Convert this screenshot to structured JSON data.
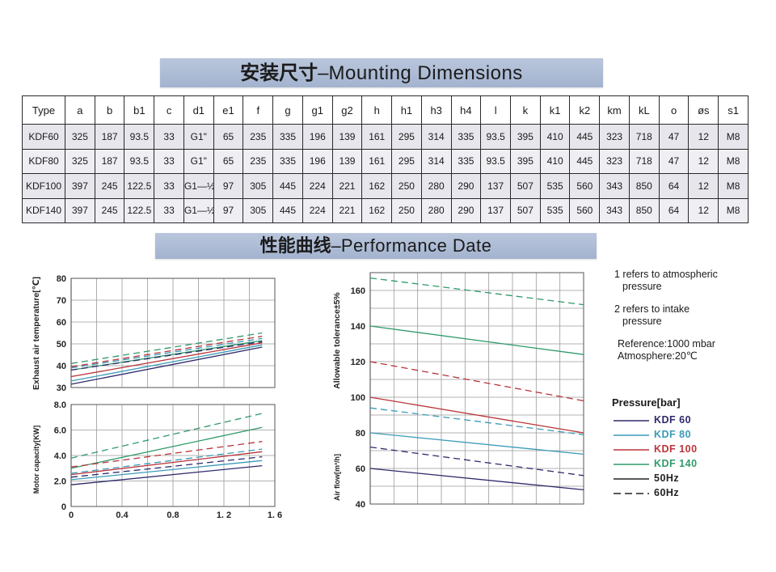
{
  "banners": {
    "mounting": {
      "zh": "安装尺寸",
      "sep": "–",
      "en": "Mounting Dimensions"
    },
    "performance": {
      "zh": "性能曲线",
      "sep": "–",
      "en": "Performance Date"
    }
  },
  "dimensions_table": {
    "headers": [
      "Type",
      "a",
      "b",
      "b1",
      "c",
      "d1",
      "e1",
      "f",
      "g",
      "g1",
      "g2",
      "h",
      "h1",
      "h3",
      "h4",
      "l",
      "k",
      "k1",
      "k2",
      "km",
      "kL",
      "o",
      "øs",
      "s1"
    ],
    "rows": [
      [
        "KDF60",
        "325",
        "187",
        "93.5",
        "33",
        "G1\"",
        "65",
        "235",
        "335",
        "196",
        "139",
        "161",
        "295",
        "314",
        "335",
        "93.5",
        "395",
        "410",
        "445",
        "323",
        "718",
        "47",
        "12",
        "M8"
      ],
      [
        "KDF80",
        "325",
        "187",
        "93.5",
        "33",
        "G1\"",
        "65",
        "235",
        "335",
        "196",
        "139",
        "161",
        "295",
        "314",
        "335",
        "93.5",
        "395",
        "410",
        "445",
        "323",
        "718",
        "47",
        "12",
        "M8"
      ],
      [
        "KDF100",
        "397",
        "245",
        "122.5",
        "33",
        "G1—½\"",
        "97",
        "305",
        "445",
        "224",
        "221",
        "162",
        "250",
        "280",
        "290",
        "137",
        "507",
        "535",
        "560",
        "343",
        "850",
        "64",
        "12",
        "M8"
      ],
      [
        "KDF140",
        "397",
        "245",
        "122.5",
        "33",
        "G1—½\"",
        "97",
        "305",
        "445",
        "224",
        "221",
        "162",
        "250",
        "280",
        "290",
        "137",
        "507",
        "535",
        "560",
        "343",
        "850",
        "64",
        "12",
        "M8"
      ]
    ]
  },
  "notes": {
    "note1_a": "1 refers to atmospheric",
    "note1_b": "pressure",
    "note2_a": "2 refers to intake",
    "note2_b": "pressure",
    "reference": "Reference:1000 mbar",
    "atmosphere": "Atmosphere:20℃"
  },
  "legend": {
    "title": "Pressure[bar]",
    "items": [
      {
        "label": "KDF 60",
        "color": "#2e2a6b",
        "dash": "solid"
      },
      {
        "label": "KDF 80",
        "color": "#3a9ab8",
        "dash": "solid"
      },
      {
        "label": "KDF 100",
        "color": "#b8343a",
        "dash": "solid"
      },
      {
        "label": "KDF 140",
        "color": "#2f9a6a",
        "dash": "solid"
      },
      {
        "label": "50Hz",
        "color": "#222222",
        "dash": "solid"
      },
      {
        "label": "60Hz",
        "color": "#222222",
        "dash": "dashed"
      }
    ]
  },
  "chart_data": [
    {
      "type": "line",
      "ylabel": "Exhaust air temperature[℃]",
      "xlim": [
        0,
        1.6
      ],
      "ylim": [
        30,
        80
      ],
      "yticks": [
        30,
        40,
        50,
        60,
        70,
        80
      ],
      "grid": true,
      "series": [
        {
          "name": "KDF 60",
          "frequency": "50Hz",
          "x": [
            0,
            1.5
          ],
          "y": [
            31.5,
            48.5
          ]
        },
        {
          "name": "KDF 80",
          "frequency": "50Hz",
          "x": [
            0,
            1.5
          ],
          "y": [
            33,
            49.5
          ]
        },
        {
          "name": "KDF 100",
          "frequency": "50Hz",
          "x": [
            0,
            1.5
          ],
          "y": [
            35,
            50.5
          ]
        },
        {
          "name": "KDF 140",
          "frequency": "50Hz",
          "x": [
            0,
            1.5
          ],
          "y": [
            38,
            51.5
          ]
        },
        {
          "name": "KDF 60",
          "frequency": "60Hz",
          "x": [
            0,
            1.5
          ],
          "y": [
            38,
            51
          ]
        },
        {
          "name": "KDF 80",
          "frequency": "60Hz",
          "x": [
            0,
            1.5
          ],
          "y": [
            39,
            52.5
          ]
        },
        {
          "name": "KDF 100",
          "frequency": "60Hz",
          "x": [
            0,
            1.5
          ],
          "y": [
            39.5,
            53.5
          ]
        },
        {
          "name": "KDF 140",
          "frequency": "60Hz",
          "x": [
            0,
            1.5
          ],
          "y": [
            41,
            55
          ]
        }
      ]
    },
    {
      "type": "line",
      "xlabel": "",
      "ylabel": "Motor capacity[KW]",
      "xlim": [
        0,
        1.6
      ],
      "ylim": [
        0,
        8
      ],
      "xticks": [
        "0",
        "0.4",
        "0.8",
        "1. 2",
        "1. 6"
      ],
      "yticks": [
        "0",
        "2.0",
        "4.0",
        "6.0",
        "8.0"
      ],
      "grid": true,
      "series": [
        {
          "name": "KDF 60",
          "frequency": "50Hz",
          "x": [
            0,
            1.5
          ],
          "y": [
            1.7,
            3.2
          ]
        },
        {
          "name": "KDF 80",
          "frequency": "50Hz",
          "x": [
            0,
            1.5
          ],
          "y": [
            2.1,
            3.6
          ]
        },
        {
          "name": "KDF 100",
          "frequency": "50Hz",
          "x": [
            0,
            1.5
          ],
          "y": [
            2.5,
            4.3
          ]
        },
        {
          "name": "KDF 140",
          "frequency": "50Hz",
          "x": [
            0,
            1.5
          ],
          "y": [
            3.0,
            6.2
          ]
        },
        {
          "name": "KDF 60",
          "frequency": "60Hz",
          "x": [
            0,
            1.5
          ],
          "y": [
            2.3,
            3.9
          ]
        },
        {
          "name": "KDF 80",
          "frequency": "60Hz",
          "x": [
            0,
            1.5
          ],
          "y": [
            2.6,
            4.5
          ]
        },
        {
          "name": "KDF 100",
          "frequency": "60Hz",
          "x": [
            0,
            1.5
          ],
          "y": [
            3.1,
            5.1
          ]
        },
        {
          "name": "KDF 140",
          "frequency": "60Hz",
          "x": [
            0,
            1.5
          ],
          "y": [
            3.8,
            7.3
          ]
        }
      ]
    },
    {
      "type": "line",
      "ylabel": "Allowable tolerance±5%",
      "ylabel2": "Air flow[m³/h]",
      "ylim": [
        40,
        170
      ],
      "yticks": [
        40,
        60,
        80,
        100,
        120,
        140,
        160
      ],
      "grid": true,
      "series": [
        {
          "name": "KDF 60",
          "frequency": "50Hz",
          "x": [
            0,
            1.6
          ],
          "y": [
            60,
            48
          ]
        },
        {
          "name": "KDF 80",
          "frequency": "50Hz",
          "x": [
            0,
            1.6
          ],
          "y": [
            80,
            68
          ]
        },
        {
          "name": "KDF 100",
          "frequency": "50Hz",
          "x": [
            0,
            1.6
          ],
          "y": [
            100,
            80
          ]
        },
        {
          "name": "KDF 140",
          "frequency": "50Hz",
          "x": [
            0,
            1.6
          ],
          "y": [
            140,
            124
          ]
        },
        {
          "name": "KDF 60",
          "frequency": "60Hz",
          "x": [
            0,
            1.6
          ],
          "y": [
            72,
            56
          ]
        },
        {
          "name": "KDF 80",
          "frequency": "60Hz",
          "x": [
            0,
            1.6
          ],
          "y": [
            94,
            79
          ]
        },
        {
          "name": "KDF 100",
          "frequency": "60Hz",
          "x": [
            0,
            1.6
          ],
          "y": [
            120,
            98
          ]
        },
        {
          "name": "KDF 140",
          "frequency": "60Hz",
          "x": [
            0,
            1.6
          ],
          "y": [
            167,
            152
          ]
        }
      ]
    }
  ]
}
